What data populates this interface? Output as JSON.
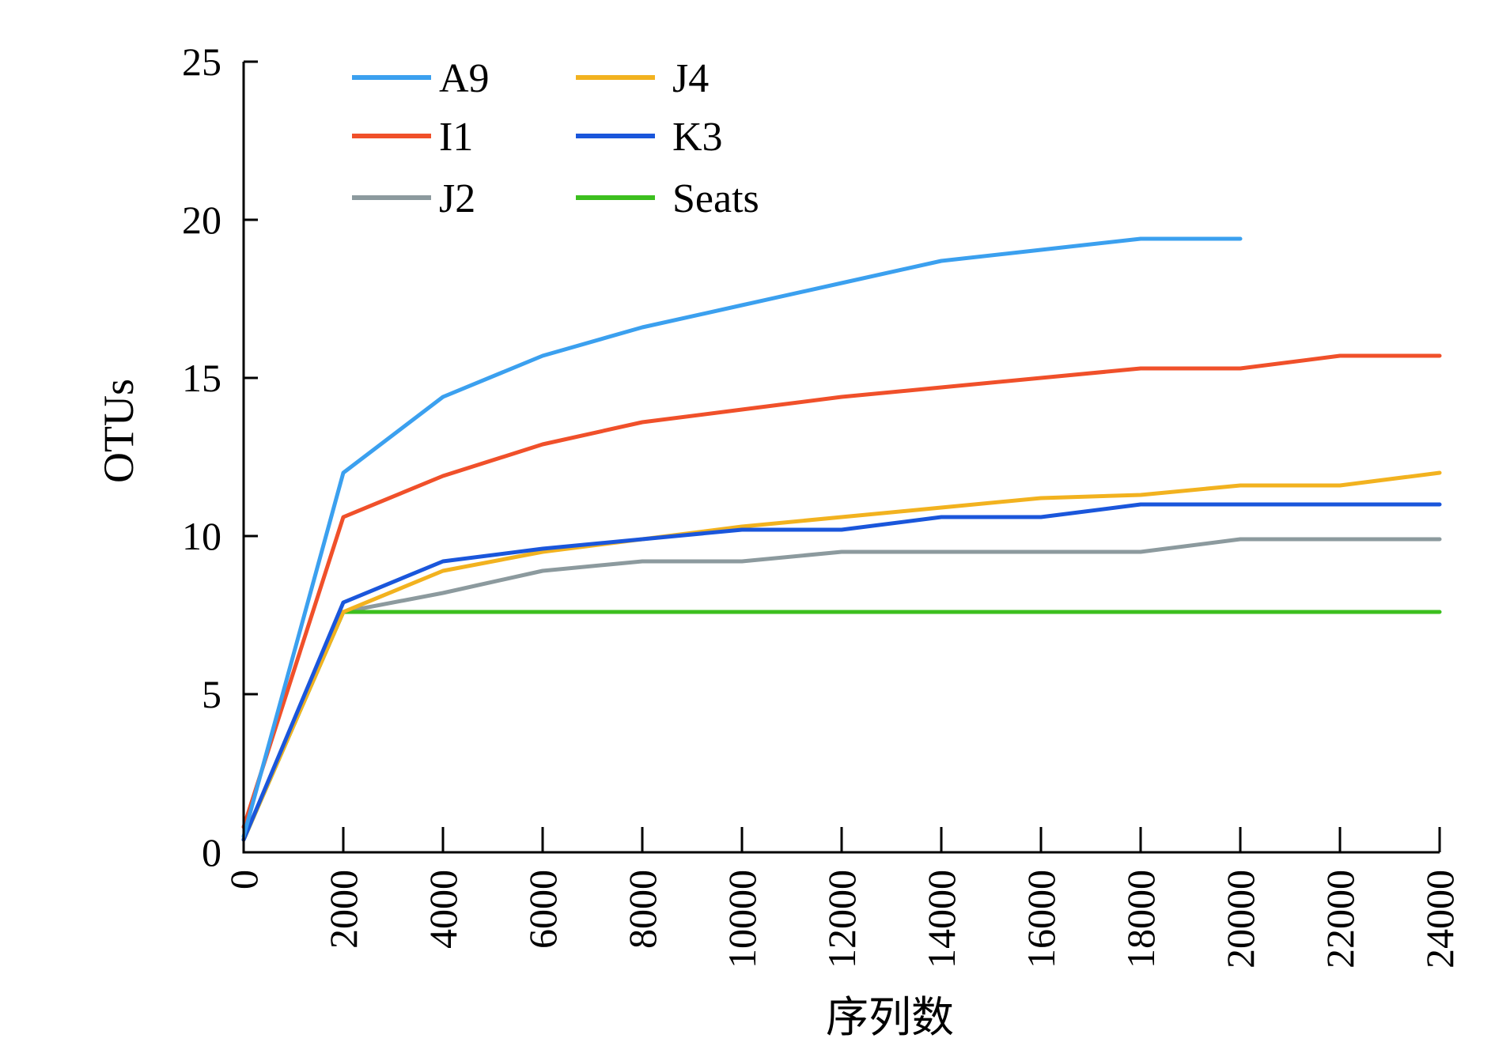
{
  "chart_data": {
    "type": "line",
    "title": "",
    "xlabel": "序列数",
    "ylabel": "OTUs",
    "xlim": [
      0,
      24000
    ],
    "ylim": [
      0,
      25
    ],
    "xticks": [
      0,
      2000,
      4000,
      6000,
      8000,
      10000,
      12000,
      14000,
      16000,
      18000,
      20000,
      22000,
      24000
    ],
    "yticks": [
      0,
      5,
      10,
      15,
      20,
      25
    ],
    "grid": false,
    "legend_position": "top-left",
    "series": [
      {
        "name": "A9",
        "color": "#3ba0ef",
        "x": [
          0,
          2000,
          4000,
          6000,
          8000,
          10000,
          12000,
          14000,
          16000,
          18000,
          20000
        ],
        "y": [
          0.5,
          12.0,
          14.4,
          15.7,
          16.6,
          17.3,
          18.0,
          18.7,
          19.05,
          19.4,
          19.4
        ]
      },
      {
        "name": "I1",
        "color": "#f0502a",
        "x": [
          0,
          2000,
          4000,
          6000,
          8000,
          10000,
          12000,
          14000,
          16000,
          18000,
          20000,
          22000,
          24000
        ],
        "y": [
          0.8,
          10.6,
          11.9,
          12.9,
          13.6,
          14.0,
          14.4,
          14.7,
          15.0,
          15.3,
          15.3,
          15.7,
          15.7
        ]
      },
      {
        "name": "J2",
        "color": "#8c9a9e",
        "x": [
          0,
          2000,
          4000,
          6000,
          8000,
          10000,
          12000,
          14000,
          16000,
          18000,
          20000,
          22000,
          24000
        ],
        "y": [
          0.4,
          7.6,
          8.2,
          8.9,
          9.2,
          9.2,
          9.5,
          9.5,
          9.5,
          9.5,
          9.9,
          9.9,
          9.9
        ]
      },
      {
        "name": "J4",
        "color": "#f2b21f",
        "x": [
          0,
          2000,
          4000,
          6000,
          8000,
          10000,
          12000,
          14000,
          16000,
          18000,
          20000,
          22000,
          24000
        ],
        "y": [
          0.4,
          7.6,
          8.9,
          9.5,
          9.9,
          10.3,
          10.6,
          10.9,
          11.2,
          11.3,
          11.6,
          11.6,
          12.0
        ]
      },
      {
        "name": "K3",
        "color": "#1a56db",
        "x": [
          0,
          2000,
          4000,
          6000,
          8000,
          10000,
          12000,
          14000,
          16000,
          18000,
          20000,
          22000,
          24000
        ],
        "y": [
          0.4,
          7.9,
          9.2,
          9.6,
          9.9,
          10.2,
          10.2,
          10.6,
          10.6,
          11.0,
          11.0,
          11.0,
          11.0
        ]
      },
      {
        "name": "Seats",
        "color": "#3cbf1e",
        "x": [
          0,
          2000,
          4000,
          6000,
          8000,
          10000,
          12000,
          14000,
          16000,
          18000,
          20000,
          22000,
          24000
        ],
        "y": [
          0.4,
          7.6,
          7.6,
          7.6,
          7.6,
          7.6,
          7.6,
          7.6,
          7.6,
          7.6,
          7.6,
          7.6,
          7.6
        ]
      }
    ]
  }
}
